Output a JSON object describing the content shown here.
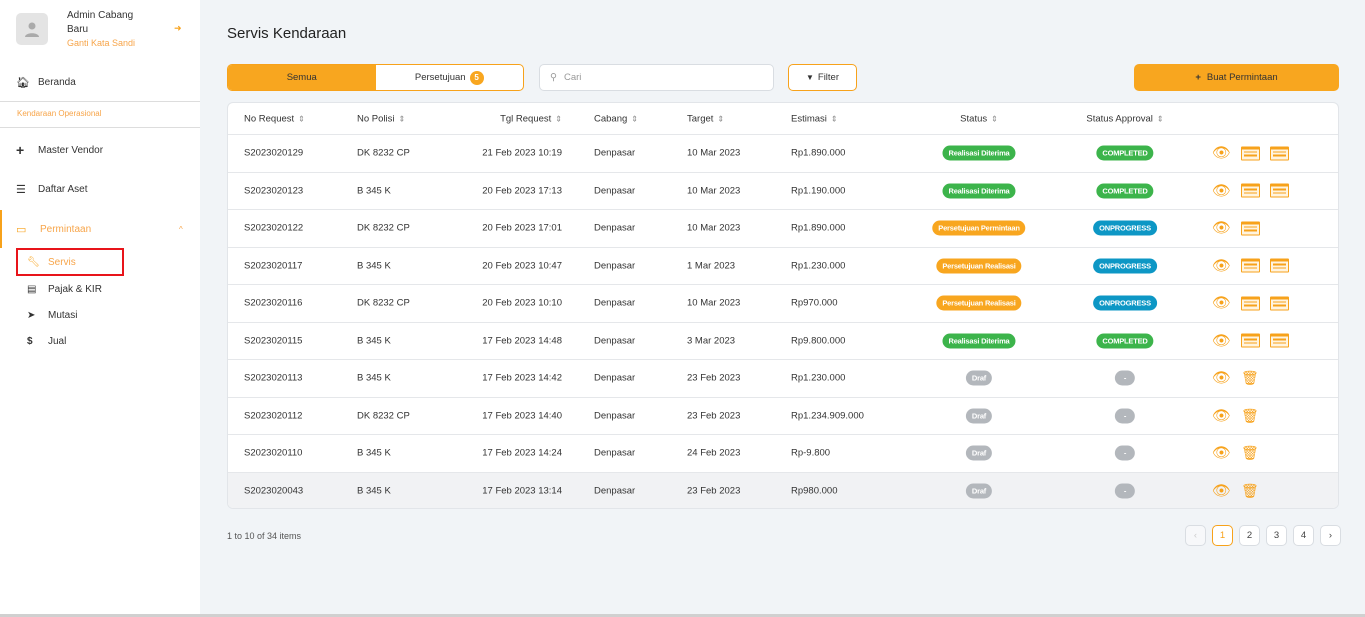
{
  "user": {
    "name": "Admin Cabang Baru",
    "change_password": "Ganti Kata Sandi"
  },
  "sidebar": {
    "home": "Beranda",
    "section": "Kendaraan Operasional",
    "vendor": "Master Vendor",
    "assets": "Daftar Aset",
    "request": "Permintaan",
    "sub": [
      "Servis",
      "Pajak & KIR",
      "Mutasi",
      "Jual"
    ]
  },
  "page": {
    "title": "Servis Kendaraan",
    "tab_all": "Semua",
    "tab_approval": "Persetujuan",
    "approval_count": "5",
    "search_placeholder": "Cari",
    "filter": "Filter",
    "create": "Buat Permintaan"
  },
  "columns": [
    "No Request",
    "No Polisi",
    "Tgl Request",
    "Cabang",
    "Target",
    "Estimasi",
    "Status",
    "Status Approval"
  ],
  "colors": {
    "accent": "#f8a61f",
    "green": "#3cb44b",
    "orange": "#f8a61f",
    "blue": "#0d97c5",
    "grey": "#b3b7bc"
  },
  "rows": [
    [
      "S2023020129",
      "DK 8232 CP",
      "21 Feb 2023 10:19",
      "Denpasar",
      "10 Mar 2023",
      "Rp1.890.000",
      "Realisasi Diterima",
      "COMPLETED"
    ],
    [
      "S2023020123",
      "B 345 K",
      "20 Feb 2023 17:13",
      "Denpasar",
      "10 Mar 2023",
      "Rp1.190.000",
      "Realisasi Diterima",
      "COMPLETED"
    ],
    [
      "S2023020122",
      "DK 8232 CP",
      "20 Feb 2023 17:01",
      "Denpasar",
      "10 Mar 2023",
      "Rp1.890.000",
      "Persetujuan Permintaan",
      "ONPROGRESS"
    ],
    [
      "S2023020117",
      "B 345 K",
      "20 Feb 2023 10:47",
      "Denpasar",
      "1 Mar 2023",
      "Rp1.230.000",
      "Persetujuan Realisasi",
      "ONPROGRESS"
    ],
    [
      "S2023020116",
      "DK 8232 CP",
      "20 Feb 2023 10:10",
      "Denpasar",
      "10 Mar 2023",
      "Rp970.000",
      "Persetujuan Realisasi",
      "ONPROGRESS"
    ],
    [
      "S2023020115",
      "B 345 K",
      "17 Feb 2023 14:48",
      "Denpasar",
      "3 Mar 2023",
      "Rp9.800.000",
      "Realisasi Diterima",
      "COMPLETED"
    ],
    [
      "S2023020113",
      "B 345 K",
      "17 Feb 2023 14:42",
      "Denpasar",
      "23 Feb 2023",
      "Rp1.230.000",
      "Draf",
      "-"
    ],
    [
      "S2023020112",
      "DK 8232 CP",
      "17 Feb 2023 14:40",
      "Denpasar",
      "23 Feb 2023",
      "Rp1.234.909.000",
      "Draf",
      "-"
    ],
    [
      "S2023020110",
      "B 345 K",
      "17 Feb 2023 14:24",
      "Denpasar",
      "24 Feb 2023",
      "Rp-9.800",
      "Draf",
      "-"
    ],
    [
      "S2023020043",
      "B 345 K",
      "17 Feb 2023 13:14",
      "Denpasar",
      "23 Feb 2023",
      "Rp980.000",
      "Draf",
      "-"
    ]
  ],
  "pagination": {
    "info": "1 to 10 of 34 items",
    "pages": [
      "1",
      "2",
      "3",
      "4"
    ],
    "current": "1"
  }
}
